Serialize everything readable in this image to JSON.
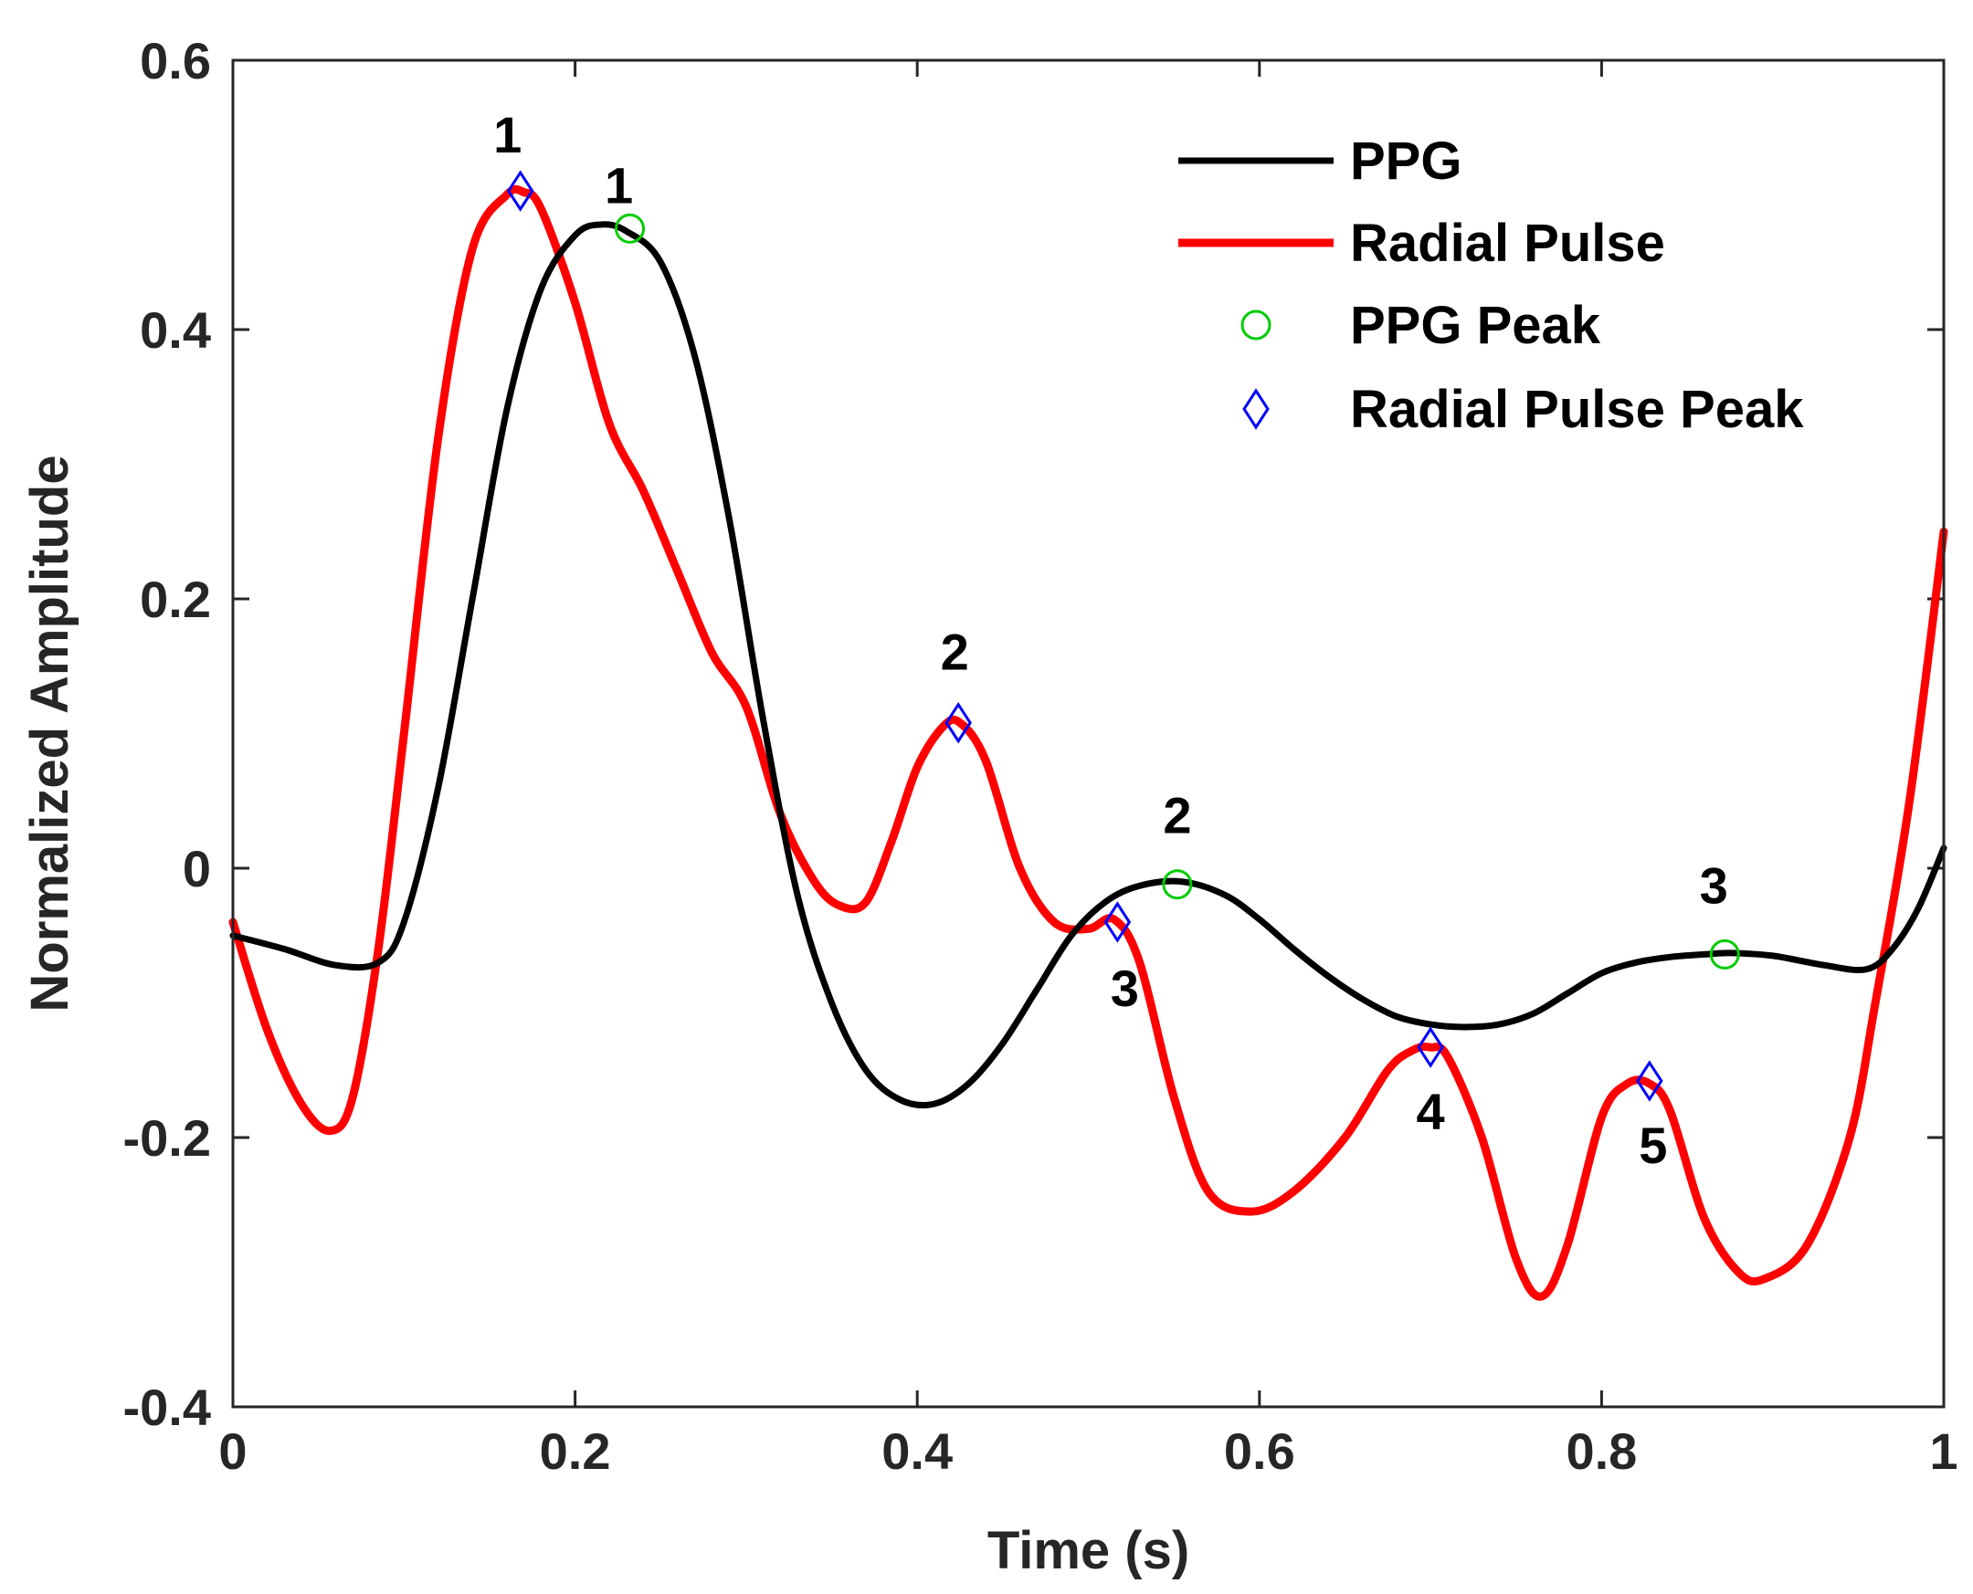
{
  "chart_data": {
    "type": "line",
    "title": "",
    "xlabel": "Time (s)",
    "ylabel": "Normalized Amplitude",
    "xlim": [
      0,
      1
    ],
    "ylim": [
      -0.4,
      0.6
    ],
    "xticks": [
      0,
      0.2,
      0.4,
      0.6,
      0.8,
      1
    ],
    "xtick_labels": [
      "0",
      "0.2",
      "0.4",
      "0.6",
      "0.8",
      "1"
    ],
    "yticks": [
      -0.4,
      -0.2,
      0,
      0.2,
      0.4,
      0.6
    ],
    "ytick_labels": [
      "-0.4",
      "-0.2",
      "0",
      "0.2",
      "0.4",
      "0.6"
    ],
    "grid": false,
    "legend_position": "top-right",
    "colors": {
      "ppg": "#000000",
      "radial": "#ff0000",
      "ppg_peak": "#00cc00",
      "radial_peak": "#0000ff",
      "axis": "#262626"
    },
    "series": [
      {
        "name": "PPG",
        "color": "#000000",
        "x": [
          0,
          0.03,
          0.06,
          0.085,
          0.1,
          0.12,
          0.14,
          0.16,
          0.18,
          0.2,
          0.215,
          0.23,
          0.25,
          0.27,
          0.29,
          0.31,
          0.33,
          0.35,
          0.37,
          0.39,
          0.41,
          0.43,
          0.45,
          0.47,
          0.49,
          0.51,
          0.53,
          0.555,
          0.58,
          0.6,
          0.62,
          0.64,
          0.66,
          0.68,
          0.7,
          0.72,
          0.74,
          0.76,
          0.78,
          0.8,
          0.82,
          0.84,
          0.86,
          0.875,
          0.9,
          0.93,
          0.955,
          0.97,
          0.985,
          1.0
        ],
        "y": [
          -0.05,
          -0.06,
          -0.072,
          -0.07,
          -0.04,
          0.06,
          0.2,
          0.34,
          0.43,
          0.47,
          0.478,
          0.473,
          0.45,
          0.38,
          0.26,
          0.11,
          -0.02,
          -0.1,
          -0.15,
          -0.172,
          -0.175,
          -0.16,
          -0.13,
          -0.09,
          -0.05,
          -0.025,
          -0.013,
          -0.01,
          -0.02,
          -0.038,
          -0.06,
          -0.08,
          -0.097,
          -0.11,
          -0.116,
          -0.118,
          -0.116,
          -0.108,
          -0.093,
          -0.078,
          -0.07,
          -0.066,
          -0.064,
          -0.063,
          -0.065,
          -0.072,
          -0.075,
          -0.06,
          -0.03,
          0.015
        ]
      },
      {
        "name": "Radial Pulse",
        "color": "#ff0000",
        "x": [
          0,
          0.02,
          0.04,
          0.057,
          0.07,
          0.085,
          0.1,
          0.12,
          0.14,
          0.16,
          0.17,
          0.18,
          0.2,
          0.22,
          0.24,
          0.26,
          0.28,
          0.3,
          0.32,
          0.34,
          0.355,
          0.37,
          0.385,
          0.4,
          0.415,
          0.425,
          0.44,
          0.46,
          0.48,
          0.5,
          0.515,
          0.53,
          0.55,
          0.57,
          0.595,
          0.62,
          0.65,
          0.675,
          0.69,
          0.7,
          0.71,
          0.73,
          0.75,
          0.765,
          0.78,
          0.8,
          0.815,
          0.828,
          0.84,
          0.86,
          0.88,
          0.895,
          0.92,
          0.945,
          0.96,
          0.98,
          1.0
        ],
        "y": [
          -0.04,
          -0.12,
          -0.175,
          -0.195,
          -0.17,
          -0.06,
          0.1,
          0.32,
          0.46,
          0.5,
          0.502,
          0.49,
          0.42,
          0.33,
          0.28,
          0.22,
          0.16,
          0.12,
          0.04,
          -0.01,
          -0.028,
          -0.025,
          0.02,
          0.075,
          0.105,
          0.108,
          0.08,
          0.0,
          -0.04,
          -0.045,
          -0.038,
          -0.07,
          -0.17,
          -0.24,
          -0.255,
          -0.24,
          -0.2,
          -0.15,
          -0.135,
          -0.133,
          -0.14,
          -0.2,
          -0.29,
          -0.318,
          -0.28,
          -0.185,
          -0.16,
          -0.16,
          -0.18,
          -0.26,
          -0.3,
          -0.305,
          -0.28,
          -0.2,
          -0.1,
          0.05,
          0.25
        ]
      }
    ],
    "markers": [
      {
        "name": "PPG Peak",
        "symbol": "circle",
        "color": "#00cc00",
        "points": [
          {
            "x": 0.232,
            "y": 0.475,
            "label": "1"
          },
          {
            "x": 0.552,
            "y": -0.012,
            "label": "2"
          },
          {
            "x": 0.872,
            "y": -0.064,
            "label": "3"
          }
        ]
      },
      {
        "name": "Radial Pulse Peak",
        "symbol": "diamond",
        "color": "#0000ff",
        "points": [
          {
            "x": 0.168,
            "y": 0.503,
            "label": "1"
          },
          {
            "x": 0.424,
            "y": 0.108,
            "label": "2"
          },
          {
            "x": 0.517,
            "y": -0.04,
            "label": "3"
          },
          {
            "x": 0.7,
            "y": -0.133,
            "label": "4"
          },
          {
            "x": 0.828,
            "y": -0.158,
            "label": "5"
          }
        ]
      }
    ],
    "legend": [
      "PPG",
      "Radial Pulse",
      "PPG Peak",
      "Radial Pulse Peak"
    ]
  }
}
